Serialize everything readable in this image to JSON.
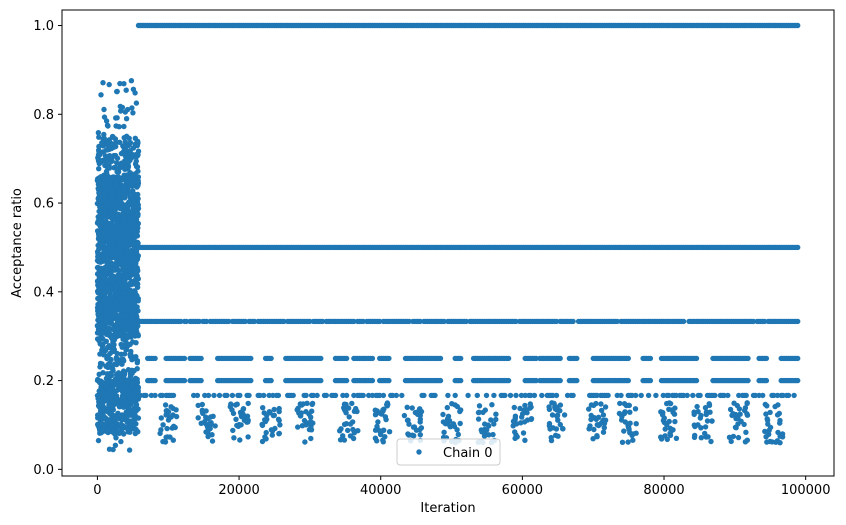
{
  "chart_data": {
    "type": "scatter",
    "xlabel": "Iteration",
    "ylabel": "Acceptance ratio",
    "xlim": [
      -5000,
      104000
    ],
    "ylim": [
      -0.015,
      1.035
    ],
    "xticks": [
      0,
      20000,
      40000,
      60000,
      80000,
      100000
    ],
    "xtick_labels": [
      "0",
      "20000",
      "40000",
      "60000",
      "80000",
      "100000"
    ],
    "yticks": [
      0.0,
      0.2,
      0.4,
      0.6,
      0.8,
      1.0
    ],
    "ytick_labels": [
      "0.0",
      "0.2",
      "0.4",
      "0.6",
      "0.8",
      "1.0"
    ],
    "grid": false,
    "legend": {
      "placement": "lower center",
      "entries": [
        "Chain 0"
      ]
    },
    "series": [
      {
        "name": "Chain 0",
        "color": "#1f77b4",
        "marker": "dot",
        "description_regions": [
          {
            "x_range": [
              0,
              5800
            ],
            "y_range": [
              0.04,
              0.94
            ],
            "kind": "dense_cloud"
          }
        ],
        "levels": [
          {
            "y": 1.0,
            "x_range": [
              5800,
              99000
            ],
            "kind": "continuous"
          },
          {
            "y": 0.5,
            "x_range": [
              5800,
              99000
            ],
            "kind": "continuous"
          },
          {
            "y": 0.3333,
            "x_range": [
              5800,
              99000
            ],
            "kind": "mostly_continuous"
          },
          {
            "y": 0.25,
            "x_range": [
              5800,
              99000
            ],
            "kind": "segments"
          },
          {
            "y": 0.2,
            "x_range": [
              5800,
              99000
            ],
            "kind": "segments"
          },
          {
            "y": 0.1667,
            "x_range": [
              5800,
              99000
            ],
            "kind": "sparse"
          }
        ],
        "clusters_x": [
          10000,
          15500,
          20000,
          24500,
          29500,
          35500,
          40000,
          44500,
          50000,
          55000,
          60000,
          65000,
          70500,
          75000,
          80500,
          85500,
          90500,
          95500
        ]
      }
    ]
  }
}
